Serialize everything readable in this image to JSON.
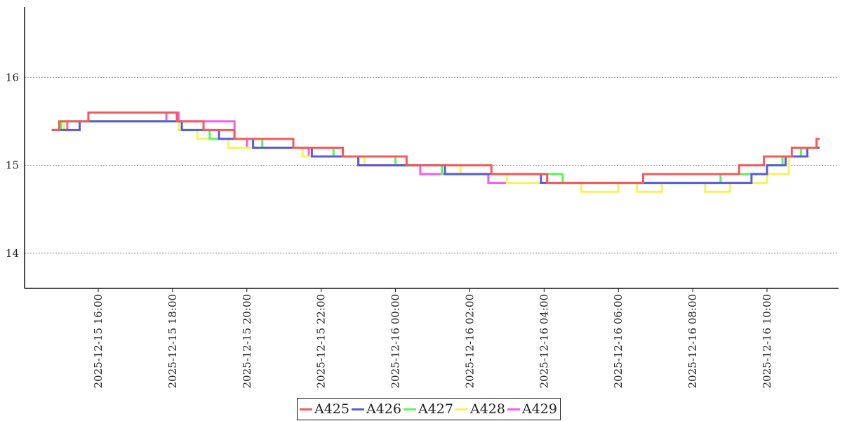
{
  "colors": {
    "A425": "#f45a5a",
    "A426": "#5a5adc",
    "A427": "#5af45a",
    "A428": "#f4f45a",
    "A429": "#f45af4"
  },
  "chart_data": {
    "type": "line",
    "title": "",
    "xlabel": "",
    "ylabel": "",
    "grid": "horizontal dotted",
    "legend_position": "bottom-center",
    "x_range": [
      "2025-12-15 14:40",
      "2025-12-16 11:30"
    ],
    "ylim": [
      13.6,
      16.8
    ],
    "y_ticks": [
      14,
      15,
      16
    ],
    "x_ticks": [
      "2025-12-15 16:00",
      "2025-12-15 18:00",
      "2025-12-15 20:00",
      "2025-12-15 22:00",
      "2025-12-16 00:00",
      "2025-12-16 02:00",
      "2025-12-16 04:00",
      "2025-12-16 06:00",
      "2025-12-16 08:00",
      "2025-12-16 10:00"
    ],
    "series": [
      {
        "name": "A425",
        "points": [
          [
            "2025-12-15 14:45",
            15.4
          ],
          [
            "2025-12-15 14:57",
            15.5
          ],
          [
            "2025-12-15 15:44",
            15.6
          ],
          [
            "2025-12-15 18:07",
            15.5
          ],
          [
            "2025-12-15 18:50",
            15.4
          ],
          [
            "2025-12-15 19:40",
            15.3
          ],
          [
            "2025-12-15 21:15",
            15.2
          ],
          [
            "2025-12-15 22:35",
            15.1
          ],
          [
            "2025-12-16 00:18",
            15.0
          ],
          [
            "2025-12-16 02:35",
            14.9
          ],
          [
            "2025-12-16 04:05",
            14.8
          ],
          [
            "2025-12-16 06:40",
            14.9
          ],
          [
            "2025-12-16 09:15",
            15.0
          ],
          [
            "2025-12-16 09:55",
            15.1
          ],
          [
            "2025-12-16 10:40",
            15.2
          ],
          [
            "2025-12-16 11:20",
            15.3
          ],
          [
            "2025-12-16 11:25",
            15.3
          ]
        ]
      },
      {
        "name": "A426",
        "points": [
          [
            "2025-12-15 14:45",
            15.4
          ],
          [
            "2025-12-15 15:30",
            15.5
          ],
          [
            "2025-12-15 16:50",
            15.5
          ],
          [
            "2025-12-15 18:15",
            15.4
          ],
          [
            "2025-12-15 19:15",
            15.3
          ],
          [
            "2025-12-15 20:10",
            15.2
          ],
          [
            "2025-12-15 21:45",
            15.1
          ],
          [
            "2025-12-15 23:00",
            15.0
          ],
          [
            "2025-12-16 01:20",
            14.9
          ],
          [
            "2025-12-16 03:55",
            14.8
          ],
          [
            "2025-12-16 09:35",
            14.9
          ],
          [
            "2025-12-16 10:00",
            15.0
          ],
          [
            "2025-12-16 10:30",
            15.1
          ],
          [
            "2025-12-16 11:05",
            15.2
          ],
          [
            "2025-12-16 11:25",
            15.2
          ]
        ]
      },
      {
        "name": "A427",
        "points": [
          [
            "2025-12-15 14:45",
            15.4
          ],
          [
            "2025-12-15 15:00",
            15.5
          ],
          [
            "2025-12-15 18:05",
            15.5
          ],
          [
            "2025-12-15 18:15",
            15.4
          ],
          [
            "2025-12-15 19:00",
            15.3
          ],
          [
            "2025-12-15 19:45",
            15.3
          ],
          [
            "2025-12-15 20:25",
            15.2
          ],
          [
            "2025-12-15 21:15",
            15.2
          ],
          [
            "2025-12-15 22:20",
            15.1
          ],
          [
            "2025-12-16 00:00",
            15.0
          ],
          [
            "2025-12-16 01:15",
            14.9
          ],
          [
            "2025-12-16 04:15",
            14.9
          ],
          [
            "2025-12-16 04:30",
            14.8
          ],
          [
            "2025-12-16 08:45",
            14.9
          ],
          [
            "2025-12-16 10:00",
            15.0
          ],
          [
            "2025-12-16 10:25",
            15.1
          ],
          [
            "2025-12-16 10:55",
            15.2
          ],
          [
            "2025-12-16 11:20",
            15.2
          ]
        ]
      },
      {
        "name": "A428",
        "points": [
          [
            "2025-12-15 14:50",
            15.4
          ],
          [
            "2025-12-15 15:05",
            15.5
          ],
          [
            "2025-12-15 18:10",
            15.4
          ],
          [
            "2025-12-15 18:40",
            15.3
          ],
          [
            "2025-12-15 19:30",
            15.2
          ],
          [
            "2025-12-15 20:30",
            15.2
          ],
          [
            "2025-12-15 21:30",
            15.1
          ],
          [
            "2025-12-15 23:10",
            15.0
          ],
          [
            "2025-12-16 01:00",
            15.0
          ],
          [
            "2025-12-16 01:45",
            14.9
          ],
          [
            "2025-12-16 03:00",
            14.8
          ],
          [
            "2025-12-16 05:00",
            14.7
          ],
          [
            "2025-12-16 06:00",
            14.8
          ],
          [
            "2025-12-16 06:30",
            14.7
          ],
          [
            "2025-12-16 07:10",
            14.8
          ],
          [
            "2025-12-16 08:20",
            14.7
          ],
          [
            "2025-12-16 09:00",
            14.8
          ],
          [
            "2025-12-16 10:00",
            14.9
          ],
          [
            "2025-12-16 10:35",
            15.1
          ],
          [
            "2025-12-16 11:10",
            15.1
          ]
        ]
      },
      {
        "name": "A429",
        "points": [
          [
            "2025-12-15 14:45",
            15.4
          ],
          [
            "2025-12-15 15:10",
            15.5
          ],
          [
            "2025-12-15 17:50",
            15.6
          ],
          [
            "2025-12-15 18:10",
            15.5
          ],
          [
            "2025-12-15 19:40",
            15.3
          ],
          [
            "2025-12-15 20:00",
            15.2
          ],
          [
            "2025-12-15 21:40",
            15.1
          ],
          [
            "2025-12-15 23:00",
            15.0
          ],
          [
            "2025-12-16 00:40",
            14.9
          ],
          [
            "2025-12-16 02:30",
            14.8
          ],
          [
            "2025-12-16 03:10",
            14.8
          ]
        ]
      }
    ]
  }
}
